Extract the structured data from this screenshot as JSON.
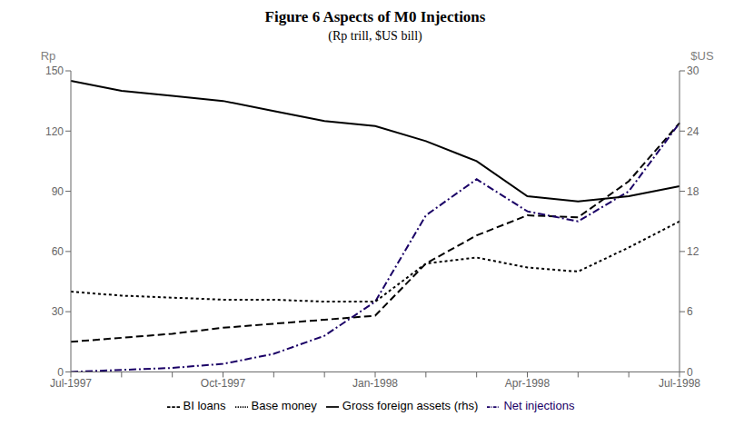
{
  "chart_data": {
    "type": "line",
    "title": "Figure 6 Aspects of M0 Injections",
    "subtitle": "(Rp trill, $US bill)",
    "ylabel": "Rp",
    "y2label": "$US",
    "categories": [
      "Jul-1997",
      null,
      null,
      "Oct-1997",
      null,
      null,
      "Jan-1998",
      null,
      null,
      "Apr-1998",
      null,
      null,
      "Jul-1998"
    ],
    "series": [
      {
        "name": "BI loans",
        "color": "#000000",
        "line_style": "dashed",
        "values": [
          15,
          17,
          19,
          22,
          24,
          26,
          28,
          54,
          68,
          78,
          77,
          95,
          124
        ]
      },
      {
        "name": "Net injections",
        "color": "#1a0066",
        "line_style": "dashdot",
        "values": [
          0,
          1,
          2,
          4,
          9,
          18,
          35,
          78,
          96,
          80,
          75,
          90,
          124
        ]
      },
      {
        "name": "Base money",
        "color": "#000000",
        "line_style": "dotted",
        "values": [
          40,
          38,
          37,
          36,
          36,
          35,
          35,
          54,
          57,
          52,
          50,
          62,
          75
        ]
      },
      {
        "name": "Gross foreign assets (rhs)",
        "color": "#000000",
        "line_style": "solid",
        "axis": "y2",
        "values": [
          29.0,
          28.0,
          27.5,
          27.0,
          26.0,
          25.0,
          24.5,
          23.0,
          21.0,
          17.5,
          17.0,
          17.5,
          18.5
        ]
      }
    ],
    "ylim": [
      0,
      150
    ],
    "yticks": [
      0,
      30,
      60,
      90,
      120,
      150
    ],
    "y2lim": [
      0,
      30
    ],
    "y2ticks": [
      0,
      6,
      12,
      18,
      24,
      30
    ],
    "grid": false,
    "legend": "bottom"
  }
}
